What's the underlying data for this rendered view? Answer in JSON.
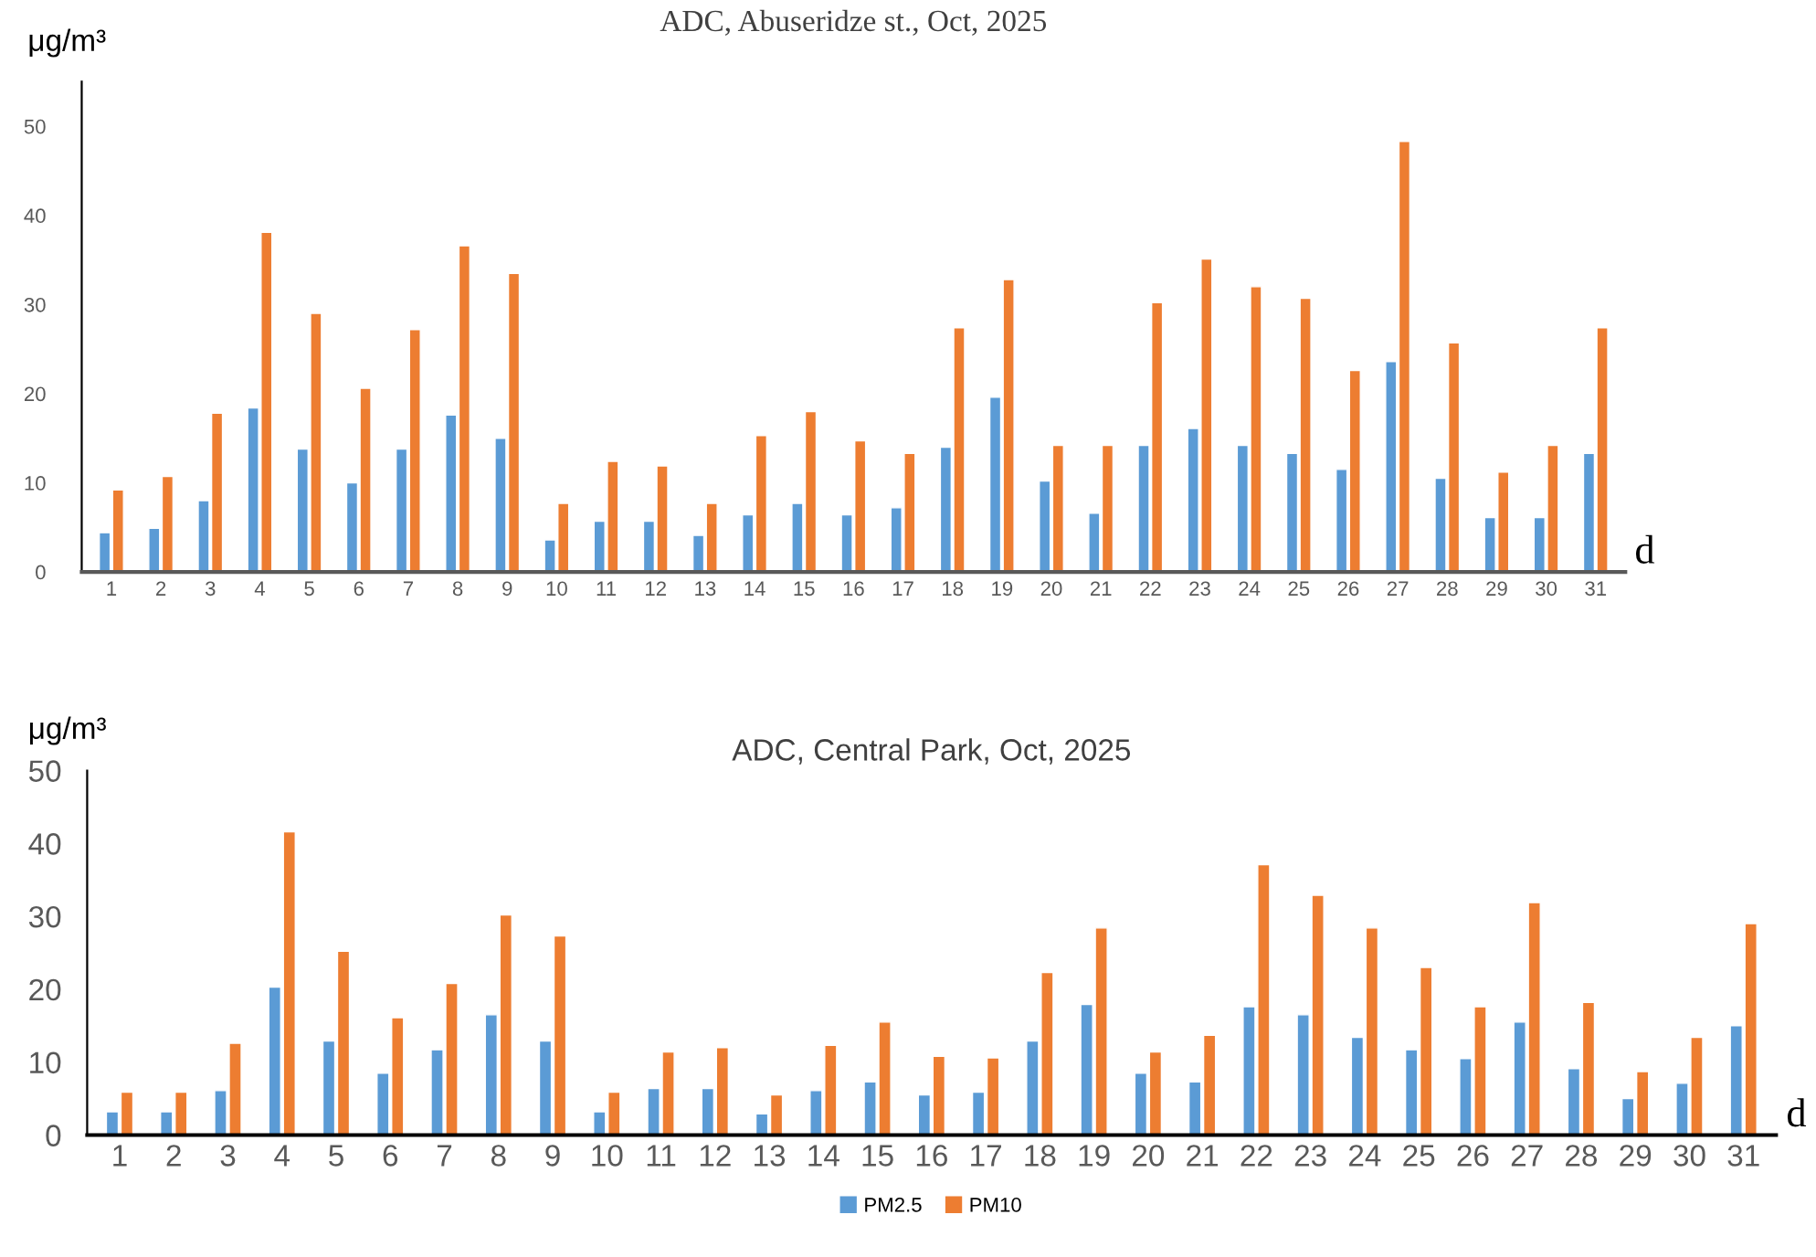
{
  "chart_data": [
    {
      "type": "bar",
      "title": "ADC, Abuseridze st., Oct, 2025",
      "xlabel": "d",
      "ylabel": "μg/m³",
      "categories": [
        "1",
        "2",
        "3",
        "4",
        "5",
        "6",
        "7",
        "8",
        "9",
        "10",
        "11",
        "12",
        "13",
        "14",
        "15",
        "16",
        "17",
        "18",
        "19",
        "20",
        "21",
        "22",
        "23",
        "24",
        "25",
        "26",
        "27",
        "28",
        "29",
        "30",
        "31"
      ],
      "series": [
        {
          "color": "#5b9bd5",
          "values": [
            4.4,
            4.9,
            8.0,
            18.4,
            13.8,
            10.0,
            13.8,
            17.6,
            15.0,
            3.6,
            5.7,
            5.7,
            4.1,
            6.4,
            7.7,
            6.4,
            7.2,
            14.0,
            19.6,
            10.2,
            6.6,
            14.2,
            16.1,
            14.2,
            13.3,
            11.5,
            23.6,
            10.5,
            6.1,
            6.1,
            13.3
          ]
        },
        {
          "color": "#ed7d31",
          "values": [
            9.2,
            10.7,
            17.8,
            38.1,
            29.0,
            20.6,
            27.2,
            36.6,
            33.5,
            7.7,
            12.4,
            11.9,
            7.7,
            15.3,
            18.0,
            14.7,
            13.3,
            27.4,
            32.8,
            14.2,
            14.2,
            30.2,
            35.1,
            32.0,
            30.7,
            22.6,
            48.3,
            25.7,
            11.2,
            14.2,
            27.4
          ]
        }
      ],
      "ylim": [
        0,
        55
      ],
      "yticks": [
        0,
        10,
        20,
        30,
        40,
        50
      ],
      "grid": false,
      "legend": false
    },
    {
      "type": "bar",
      "title": "ADC, Central Park, Oct, 2025",
      "xlabel": "d",
      "ylabel": "μg/m³",
      "categories": [
        "1",
        "2",
        "3",
        "4",
        "5",
        "6",
        "7",
        "8",
        "9",
        "10",
        "11",
        "12",
        "13",
        "14",
        "15",
        "16",
        "17",
        "18",
        "19",
        "20",
        "21",
        "22",
        "23",
        "24",
        "25",
        "26",
        "27",
        "28",
        "29",
        "30",
        "31"
      ],
      "series": [
        {
          "name": "PM2.5",
          "color": "#5b9bd5",
          "values": [
            3.2,
            3.2,
            6.1,
            20.3,
            12.9,
            8.5,
            11.7,
            16.5,
            12.9,
            3.2,
            6.4,
            6.4,
            2.9,
            6.1,
            7.3,
            5.5,
            5.9,
            12.9,
            17.9,
            8.5,
            7.3,
            17.6,
            16.5,
            13.4,
            11.7,
            10.5,
            15.5,
            9.1,
            5.0,
            7.1,
            15.0
          ]
        },
        {
          "name": "PM10",
          "color": "#ed7d31",
          "values": [
            5.9,
            5.9,
            12.6,
            41.6,
            25.2,
            16.1,
            20.8,
            30.2,
            27.3,
            5.9,
            11.4,
            12.0,
            5.5,
            12.3,
            15.5,
            10.8,
            10.6,
            22.3,
            28.4,
            11.4,
            13.7,
            37.1,
            32.9,
            28.4,
            23.0,
            17.6,
            31.9,
            18.2,
            8.7,
            13.4,
            29.0
          ]
        }
      ],
      "ylim": [
        0,
        50
      ],
      "yticks": [
        0,
        10,
        20,
        30,
        40,
        50
      ],
      "grid": false,
      "legend": "bottom"
    }
  ]
}
